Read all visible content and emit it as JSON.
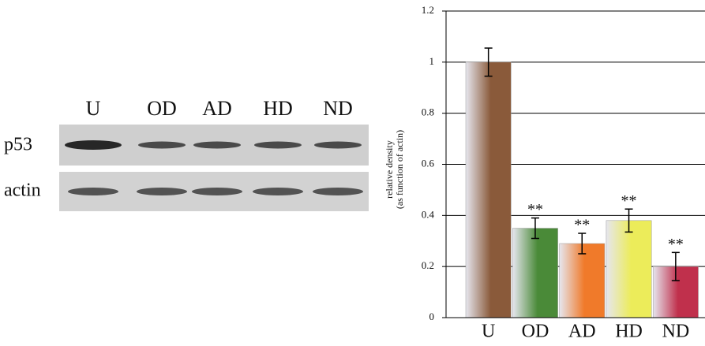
{
  "blot": {
    "lanes": [
      "U",
      "OD",
      "AD",
      "HD",
      "ND"
    ],
    "rows": [
      "p53",
      "actin"
    ]
  },
  "chart_data": {
    "type": "bar",
    "ylabel": [
      "relative density",
      "(as function of actin)"
    ],
    "categories": [
      "U",
      "OD",
      "AD",
      "HD",
      "ND"
    ],
    "values": [
      1.0,
      0.35,
      0.29,
      0.38,
      0.2
    ],
    "errors": [
      0.055,
      0.04,
      0.04,
      0.045,
      0.055
    ],
    "annotations": [
      null,
      "**",
      "**",
      "**",
      "**"
    ],
    "colors": [
      "#8a5a3a",
      "#4a8a38",
      "#f07a2a",
      "#ecec5a",
      "#c0304c"
    ],
    "ylim": [
      0,
      1.2
    ],
    "yticks": [
      0,
      0.2,
      0.4,
      0.6,
      0.8,
      1,
      1.2
    ],
    "grid": true
  }
}
